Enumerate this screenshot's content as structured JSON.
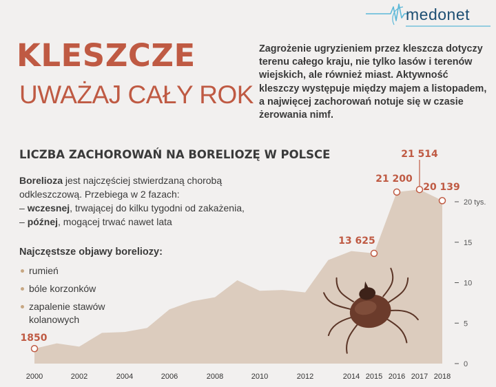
{
  "brand": {
    "name": "medonet"
  },
  "header": {
    "title": "KLESZCZE",
    "subtitle": "UWAŻAJ CAŁY ROK",
    "intro": "Zagrożenie ugryzieniem przez kleszcza dotyczy terenu całego kraju, nie tylko lasów i terenów wiejskich, ale również miast. Aktywność kleszczy występuje między majem a listopadem, a najwięcej zachorowań notuje się w czasie żerowania nimf."
  },
  "section": {
    "title": "LICZBA ZACHOROWAŃ NA BORELIOZĘ W POLSCE"
  },
  "description": {
    "term": "Borelioza",
    "line1_rest": " jest najczęściej stwierdzaną chorobą odkleszczową. Przebiega w 2 fazach:",
    "phase1_prefix": "– ",
    "phase1_bold": "wczesnej",
    "phase1_rest": ", trwającej do kilku tygodni od zakażenia,",
    "phase2_prefix": "– ",
    "phase2_bold": "późnej",
    "phase2_rest": ", mogącej trwać nawet lata"
  },
  "symptoms": {
    "title": "Najczęstsze objawy boreliozy:",
    "items": [
      "rumień",
      "bóle korzonków",
      "zapalenie stawów kolanowych"
    ]
  },
  "colors": {
    "accent": "#bf5a43",
    "area": "#dcccbe",
    "background": "#f2f0ef",
    "marker": "#c7a783"
  },
  "chart_data": {
    "type": "area",
    "x": [
      2000,
      2001,
      2002,
      2003,
      2004,
      2005,
      2006,
      2007,
      2008,
      2009,
      2010,
      2011,
      2012,
      2013,
      2014,
      2015,
      2016,
      2017,
      2018
    ],
    "values": [
      1850,
      2500,
      2100,
      3800,
      3900,
      4400,
      6700,
      7700,
      8200,
      10300,
      9000,
      9100,
      8800,
      12800,
      13900,
      13625,
      21200,
      21514,
      20139
    ],
    "x_tick_labels": [
      "2000",
      "2002",
      "2004",
      "2006",
      "2008",
      "2010",
      "2012",
      "2014",
      "2015",
      "2016",
      "2017",
      "2018"
    ],
    "x_tick_values": [
      2000,
      2002,
      2004,
      2006,
      2008,
      2010,
      2012,
      2014,
      2015,
      2016,
      2017,
      2018
    ],
    "y_ticks": [
      {
        "value": 0,
        "label": "0"
      },
      {
        "value": 5000,
        "label": "5"
      },
      {
        "value": 10000,
        "label": "10"
      },
      {
        "value": 15000,
        "label": "15"
      },
      {
        "value": 20000,
        "label": "20 tys."
      }
    ],
    "ylim": [
      0,
      22000
    ],
    "annotations": [
      {
        "year": 2000,
        "value": 1850,
        "label": "1850"
      },
      {
        "year": 2015,
        "value": 13625,
        "label": "13 625"
      },
      {
        "year": 2016,
        "value": 21200,
        "label": "21 200"
      },
      {
        "year": 2017,
        "value": 21514,
        "label": "21 514"
      },
      {
        "year": 2018,
        "value": 20139,
        "label": "20 139"
      }
    ],
    "grid": false
  }
}
